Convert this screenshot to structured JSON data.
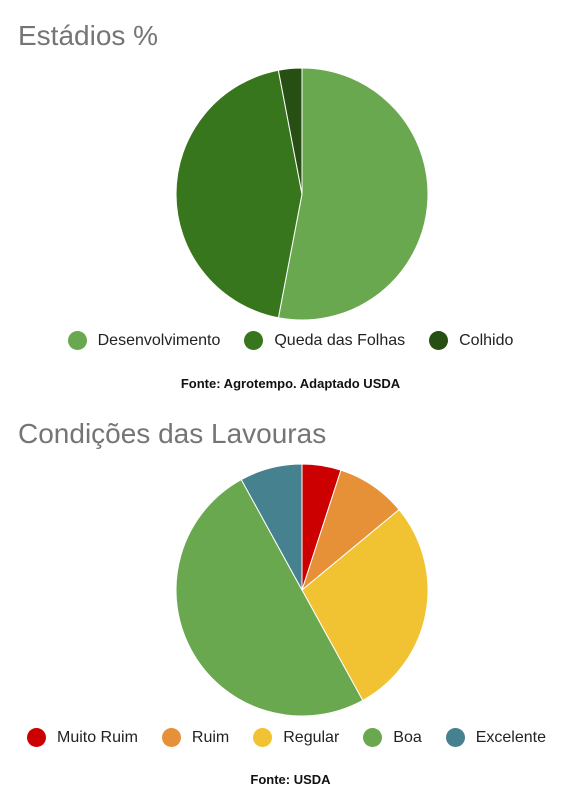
{
  "chart_data": [
    {
      "type": "pie",
      "title": "Estádios %",
      "categories": [
        "Desenvolvimento",
        "Queda das Folhas",
        "Colhido"
      ],
      "values": [
        53,
        44,
        3
      ],
      "colors": [
        "#6aa84f",
        "#38761d",
        "#274e13"
      ],
      "legend_position": "bottom",
      "source": "Fonte: Agrotempo. Adaptado USDA"
    },
    {
      "type": "pie",
      "title": "Condições das Lavouras",
      "categories": [
        "Muito Ruim",
        "Ruim",
        "Regular",
        "Boa",
        "Excelente"
      ],
      "values": [
        5,
        9,
        28,
        50,
        8
      ],
      "colors": [
        "#cc0000",
        "#e69138",
        "#f1c232",
        "#6aa84f",
        "#45818e"
      ],
      "legend_position": "bottom",
      "source": "Fonte: USDA"
    }
  ]
}
